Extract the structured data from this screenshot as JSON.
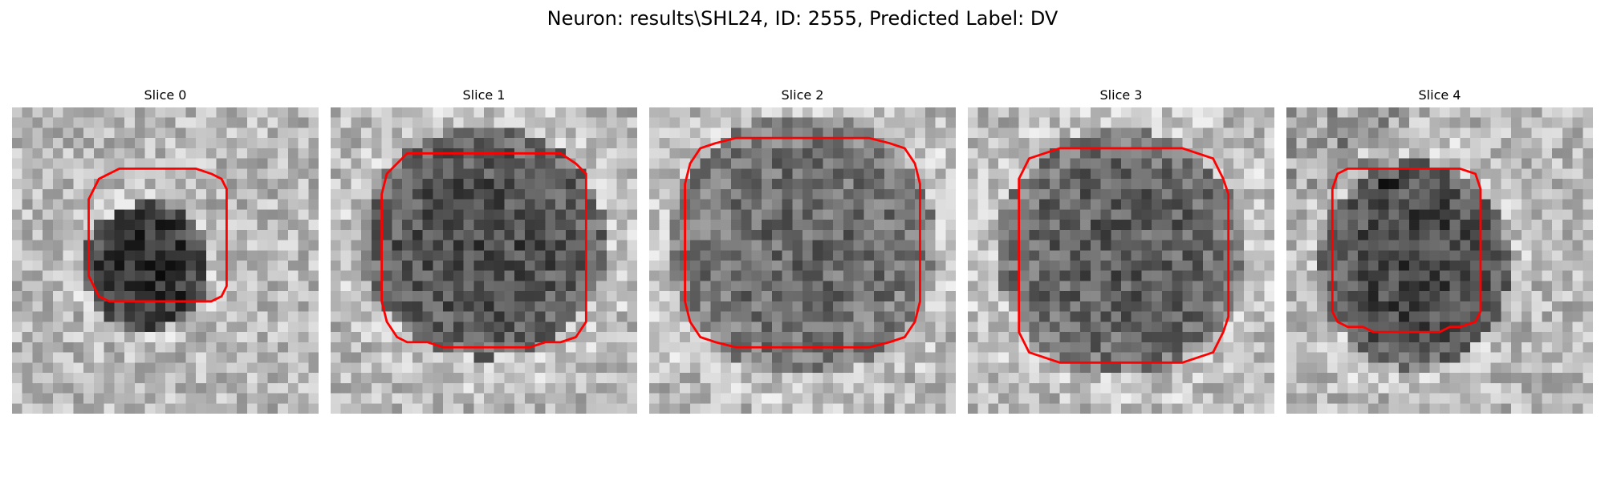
{
  "figure": {
    "title": "Neuron: results\\SHL24, ID: 2555, Predicted Label: DV"
  },
  "panels": [
    {
      "title": "Slice 0"
    },
    {
      "title": "Slice 1"
    },
    {
      "title": "Slice 2"
    },
    {
      "title": "Slice 3"
    },
    {
      "title": "Slice 4"
    }
  ],
  "style": {
    "contour_color": "#ff0000",
    "colormap": "grayscale"
  }
}
